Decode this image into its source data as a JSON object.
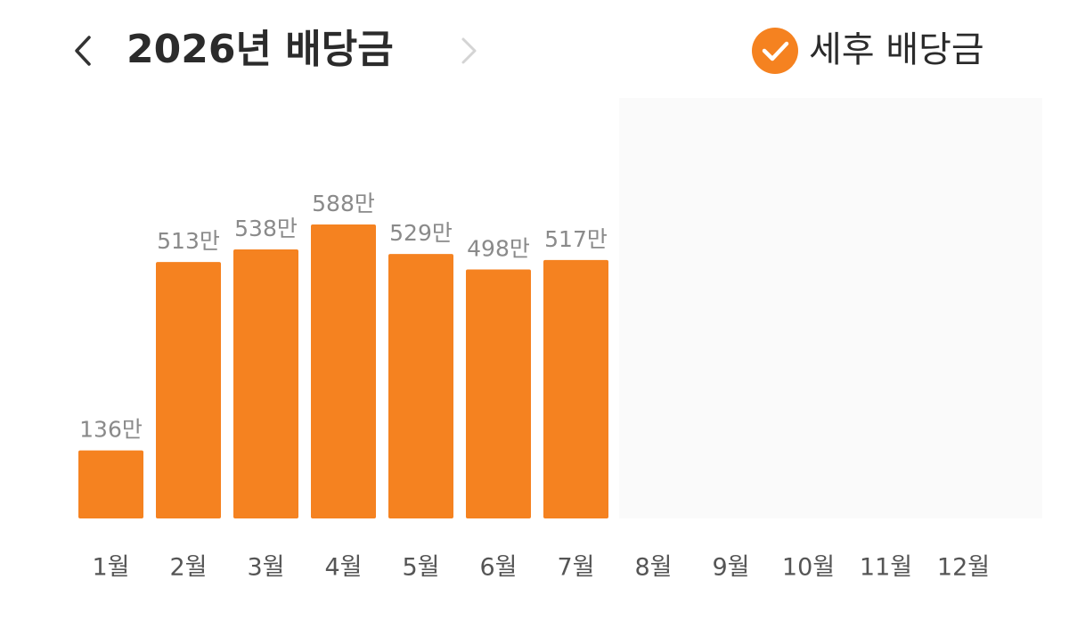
{
  "chart_data": {
    "type": "bar",
    "title": "2026년 배당금",
    "toggle_label": "세후 배당금",
    "categories": [
      "1월",
      "2월",
      "3월",
      "4월",
      "5월",
      "6월",
      "7월",
      "8월",
      "9월",
      "10월",
      "11월",
      "12월"
    ],
    "values": [
      136,
      513,
      538,
      588,
      529,
      498,
      517,
      null,
      null,
      null,
      null,
      null
    ],
    "value_labels": [
      "136만",
      "513만",
      "538만",
      "588만",
      "529만",
      "498만",
      "517만",
      null,
      null,
      null,
      null,
      null
    ],
    "color": "#f58220"
  }
}
